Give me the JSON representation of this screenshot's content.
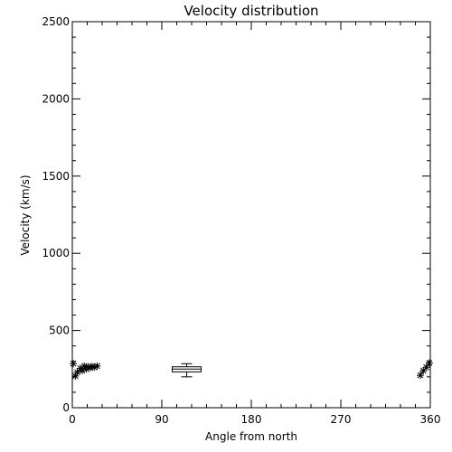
{
  "chart_data": {
    "type": "scatter",
    "title": "Velocity distribution",
    "xlabel": "Angle from north",
    "ylabel": "Velocity (km/s)",
    "xlim": [
      0,
      360
    ],
    "ylim": [
      0,
      2500
    ],
    "xticks": [
      0,
      90,
      180,
      270,
      360
    ],
    "yticks": [
      0,
      500,
      1000,
      1500,
      2000,
      2500
    ],
    "grid": false,
    "series": [
      {
        "marker": "asterisk",
        "points": [
          [
            1,
            285
          ],
          [
            3,
            205
          ],
          [
            5,
            230
          ],
          [
            8,
            255
          ],
          [
            10,
            240
          ],
          [
            12,
            270
          ],
          [
            14,
            250
          ],
          [
            16,
            265
          ],
          [
            18,
            258
          ],
          [
            20,
            268
          ],
          [
            22,
            262
          ],
          [
            25,
            270
          ],
          [
            350,
            210
          ],
          [
            353,
            240
          ],
          [
            356,
            262
          ],
          [
            359,
            290
          ]
        ]
      }
    ],
    "boxplot": {
      "x": 115,
      "min": 200,
      "q1": 232,
      "median": 250,
      "q3": 265,
      "max": 285
    }
  }
}
